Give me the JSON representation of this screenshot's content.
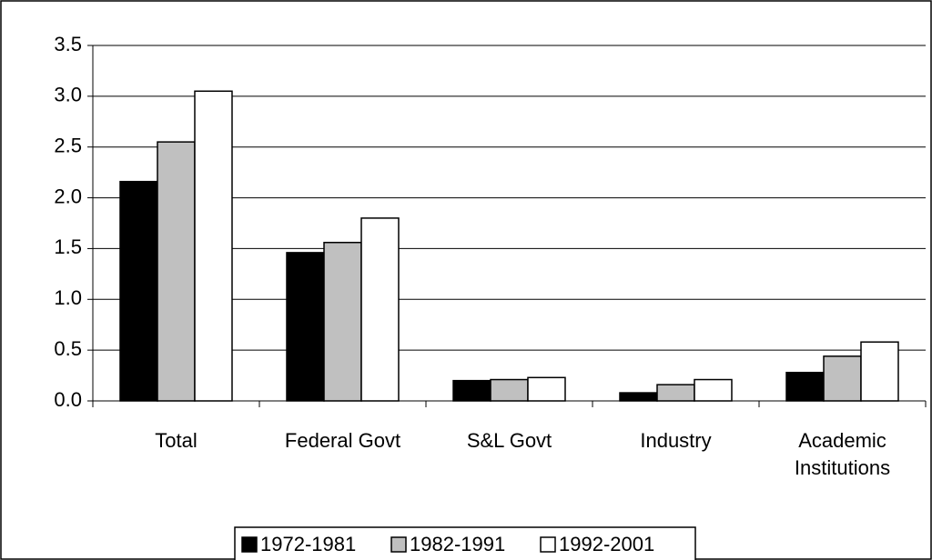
{
  "chart_data": {
    "type": "bar",
    "categories": [
      "Total",
      "Federal Govt",
      "S&L Govt",
      "Industry",
      "Academic Institutions"
    ],
    "series": [
      {
        "name": "1972-1981",
        "color": "#000000",
        "values": [
          2.16,
          1.46,
          0.2,
          0.08,
          0.28
        ]
      },
      {
        "name": "1982-1991",
        "color": "#c0c0c0",
        "values": [
          2.55,
          1.56,
          0.21,
          0.16,
          0.44
        ]
      },
      {
        "name": "1992-2001",
        "color": "#ffffff",
        "values": [
          3.05,
          1.8,
          0.23,
          0.21,
          0.58
        ]
      }
    ],
    "ylim": [
      0,
      3.5
    ],
    "yticks": [
      {
        "value": 0,
        "label": "0.0"
      },
      0.5,
      {
        "value": 1,
        "label": "1.0"
      },
      1.5,
      {
        "value": 2,
        "label": "2.0"
      },
      2.5,
      {
        "value": 3,
        "label": "3.0"
      },
      3.5
    ],
    "grid": true,
    "legend": "bottom"
  }
}
